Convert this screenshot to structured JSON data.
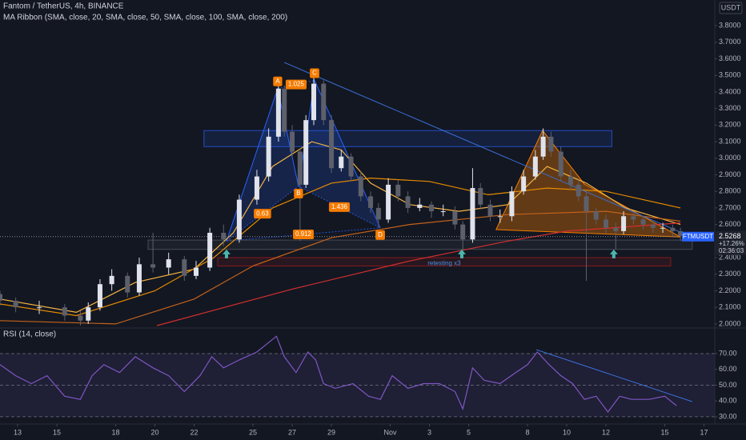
{
  "chart_data": [
    {
      "type": "candlestick",
      "title": "Fantom / TetherUS, 4h, BINANCE",
      "subtitle": "MA Ribbon (SMA, close, 20, SMA, close, 50, SMA, close, 100, SMA, close, 200)",
      "unit_label": "USDT",
      "x": [
        -0.9,
        -0.1,
        1.1,
        2.4,
        3.2,
        3.6,
        4.2,
        4.8,
        5.6,
        6.2,
        6.9,
        7.7,
        8.5,
        9.1,
        9.8,
        10.5,
        11.3,
        12.2,
        12.8,
        13.3,
        13.6,
        14.0,
        14.4,
        14.7,
        15.1,
        15.6,
        16.0,
        16.5,
        17.0,
        17.5,
        18.0,
        18.4,
        18.9,
        19.4,
        19.9,
        20.5,
        21.1,
        21.7,
        22.3,
        22.7,
        23.2,
        23.6,
        24.1,
        24.6,
        25.2,
        25.8,
        26.4,
        26.8,
        27.2,
        27.7,
        28.2,
        28.6,
        29.0,
        29.5,
        30.0,
        30.5,
        30.9,
        31.4,
        31.9,
        32.4,
        32.9,
        33.4,
        33.8
      ],
      "open": [
        2.18,
        2.14,
        2.1,
        2.1,
        2.05,
        2.02,
        2.1,
        2.24,
        2.29,
        2.19,
        2.36,
        2.34,
        2.39,
        2.29,
        2.34,
        2.55,
        2.51,
        2.75,
        2.89,
        3.13,
        3.42,
        3.16,
        3.04,
        2.84,
        3.23,
        3.45,
        3.23,
        2.94,
        3.01,
        2.89,
        2.77,
        2.7,
        2.63,
        2.84,
        2.77,
        2.7,
        2.72,
        2.68,
        2.68,
        2.6,
        2.51,
        2.82,
        2.72,
        2.65,
        2.65,
        2.8,
        2.89,
        3.01,
        3.13,
        3.04,
        2.89,
        2.84,
        2.77,
        2.68,
        2.63,
        2.58,
        2.56,
        2.65,
        2.63,
        2.6,
        2.58,
        2.58,
        2.56
      ],
      "high": [
        2.2,
        2.16,
        2.14,
        2.12,
        2.08,
        2.13,
        2.27,
        2.33,
        2.31,
        2.4,
        2.55,
        2.43,
        2.41,
        2.38,
        2.58,
        2.6,
        2.78,
        2.93,
        3.18,
        3.48,
        3.44,
        3.2,
        3.06,
        3.26,
        3.5,
        3.47,
        3.26,
        3.05,
        3.03,
        2.92,
        2.8,
        2.73,
        2.88,
        2.87,
        2.8,
        2.76,
        2.74,
        2.72,
        2.71,
        2.62,
        2.94,
        2.85,
        2.75,
        2.69,
        2.83,
        2.93,
        3.05,
        3.18,
        3.16,
        3.07,
        2.93,
        2.87,
        2.8,
        2.7,
        2.66,
        2.61,
        2.68,
        2.67,
        2.65,
        2.62,
        2.61,
        2.6,
        2.58
      ],
      "low": [
        2.11,
        2.07,
        2.06,
        2.02,
        1.99,
        2.0,
        2.08,
        2.2,
        2.16,
        2.17,
        2.31,
        2.3,
        2.26,
        2.27,
        2.32,
        2.47,
        2.49,
        2.72,
        2.86,
        3.1,
        3.13,
        3.01,
        2.5,
        2.82,
        3.2,
        3.2,
        2.91,
        2.92,
        2.86,
        2.74,
        2.67,
        2.58,
        2.61,
        2.74,
        2.67,
        2.68,
        2.64,
        2.65,
        2.57,
        2.42,
        2.49,
        2.69,
        2.62,
        2.61,
        2.62,
        2.78,
        2.87,
        2.99,
        3.01,
        2.86,
        2.81,
        2.74,
        2.26,
        2.6,
        2.55,
        2.45,
        2.54,
        2.6,
        2.57,
        2.55,
        2.55,
        2.53,
        2.5
      ],
      "close": [
        2.14,
        2.1,
        2.1,
        2.05,
        2.02,
        2.1,
        2.24,
        2.29,
        2.19,
        2.36,
        2.34,
        2.39,
        2.29,
        2.34,
        2.55,
        2.51,
        2.75,
        2.89,
        3.13,
        3.42,
        3.16,
        3.04,
        2.84,
        3.23,
        3.45,
        3.23,
        2.94,
        3.01,
        2.89,
        2.77,
        2.7,
        2.63,
        2.84,
        2.77,
        2.7,
        2.72,
        2.68,
        2.68,
        2.6,
        2.51,
        2.82,
        2.72,
        2.65,
        2.65,
        2.8,
        2.89,
        3.01,
        3.13,
        3.04,
        2.89,
        2.84,
        2.77,
        2.68,
        2.63,
        2.58,
        2.56,
        2.65,
        2.63,
        2.6,
        2.58,
        2.58,
        2.56,
        2.53
      ],
      "up_color": "#e0e3eb",
      "down_color": "#5d606b",
      "xlim": [
        -0.9,
        35.55
      ],
      "ylim": [
        1.985,
        3.955
      ],
      "yticks": [
        {
          "value": 2.0,
          "label": "2.0000"
        },
        {
          "value": 2.1,
          "label": "2.1000"
        },
        {
          "value": 2.2,
          "label": "2.2000"
        },
        {
          "value": 2.3,
          "label": "2.3000"
        },
        {
          "value": 2.4,
          "label": "2.4000"
        },
        {
          "value": 2.5,
          "label": "2.5000"
        },
        {
          "value": 2.6,
          "label": "2.6000"
        },
        {
          "value": 2.7,
          "label": "2.7000"
        },
        {
          "value": 2.8,
          "label": "2.8000"
        },
        {
          "value": 2.9,
          "label": "2.9000"
        },
        {
          "value": 3.0,
          "label": "3.0000"
        },
        {
          "value": 3.1,
          "label": "3.1000"
        },
        {
          "value": 3.2,
          "label": "3.2000"
        },
        {
          "value": 3.3,
          "label": "3.3000"
        },
        {
          "value": 3.4,
          "label": "3.4000"
        },
        {
          "value": 3.5,
          "label": "3.5000"
        },
        {
          "value": 3.6,
          "label": "3.6000"
        },
        {
          "value": 3.7,
          "label": "3.7000"
        },
        {
          "value": 3.8,
          "label": "3.8000"
        }
      ],
      "ma_lines": [
        {
          "color": "#f5b342",
          "x": [
            -0.9,
            3,
            6,
            9,
            11,
            13,
            15,
            16.5,
            18,
            20,
            22.5,
            25,
            27,
            29,
            31,
            33.8
          ],
          "values": [
            2.15,
            2.07,
            2.25,
            2.33,
            2.55,
            2.95,
            3.1,
            3.05,
            2.85,
            2.72,
            2.68,
            2.72,
            2.95,
            2.85,
            2.7,
            2.6
          ]
        },
        {
          "color": "#e68a00",
          "x": [
            -0.9,
            3,
            7,
            10,
            13,
            16,
            18,
            21,
            24,
            27,
            30,
            33.8
          ],
          "values": [
            2.12,
            2.05,
            2.2,
            2.4,
            2.7,
            2.85,
            2.88,
            2.86,
            2.78,
            2.82,
            2.8,
            2.7
          ]
        },
        {
          "color": "#c4621a",
          "x": [
            -0.9,
            5,
            9,
            12,
            16,
            20,
            25,
            30,
            33.8
          ],
          "values": [
            2.02,
            2.0,
            2.15,
            2.35,
            2.52,
            2.6,
            2.66,
            2.68,
            2.62
          ]
        },
        {
          "color": "#d32f2f",
          "x": [
            7.1,
            14,
            20,
            25,
            28,
            33.8
          ],
          "values": [
            1.99,
            2.21,
            2.38,
            2.5,
            2.56,
            2.61
          ]
        }
      ],
      "trendline": {
        "color": "#3a6fd8",
        "x": [
          13.6,
          33.8
        ],
        "y": [
          3.578,
          2.554
        ]
      },
      "zones": [
        {
          "x": [
            9.5,
            30.3
          ],
          "y": [
            3.07,
            3.167
          ],
          "color": "#2962ff"
        },
        {
          "x": [
            10.2,
            33.3
          ],
          "y": [
            2.35,
            2.4
          ],
          "color": "#b71c1c",
          "label": "retesting x3"
        },
        {
          "x": [
            6.65,
            34.4
          ],
          "y": [
            2.45,
            2.506
          ],
          "color": "#5d606b"
        }
      ],
      "harmonic": {
        "color": "#2962ff",
        "label_color": "#f57c00",
        "x": [
          10.65,
          13.26,
          14.32,
          15.14,
          18.49
        ],
        "y": [
          2.5,
          3.42,
          2.83,
          3.47,
          2.58
        ],
        "labels": [
          null,
          "A",
          "B",
          "C",
          "D"
        ],
        "ratios": [
          0.63,
          1.025,
          0.912,
          1.436
        ]
      },
      "triangle": {
        "color": "#f57c00",
        "x": [
          24.4,
          26.77,
          28.9,
          33.8
        ],
        "y": [
          2.569,
          3.167,
          2.844,
          2.525
        ]
      },
      "markers": {
        "color": "#4db6ac",
        "x": [
          10.65,
          22.65,
          30.4
        ],
        "y": [
          2.42,
          2.42,
          2.42
        ]
      },
      "last_price": 2.5268,
      "change_label": "+17.26%",
      "countdown": "02:36:03",
      "symbol": "FTMUSDT"
    },
    {
      "type": "line",
      "title": "RSI (14, close)",
      "color": "#7e57c2",
      "x": [
        -0.9,
        -0.1,
        0.7,
        1.5,
        2.4,
        3.2,
        3.8,
        4.4,
        5.2,
        6.0,
        6.9,
        7.7,
        8.5,
        9.3,
        9.9,
        10.5,
        11.3,
        12.2,
        13.2,
        13.6,
        14.2,
        14.8,
        15.2,
        15.6,
        16.2,
        17.1,
        17.9,
        18.5,
        19.1,
        19.9,
        20.7,
        21.5,
        22.3,
        22.7,
        23.2,
        23.8,
        24.6,
        25.4,
        26.0,
        26.5,
        27.1,
        27.7,
        28.3,
        28.9,
        29.5,
        30.1,
        30.7,
        31.3,
        32.2,
        33.0,
        33.6
      ],
      "values": [
        63,
        56,
        51,
        56,
        43,
        41,
        56,
        63,
        58,
        68,
        61,
        56,
        46,
        56,
        68,
        61,
        66,
        71,
        81,
        68,
        58,
        71,
        66,
        51,
        48,
        51,
        43,
        41,
        56,
        48,
        51,
        51,
        46,
        35,
        61,
        53,
        51,
        58,
        63,
        71,
        63,
        56,
        51,
        41,
        43,
        33,
        43,
        41,
        41,
        43,
        37
      ],
      "band": [
        30,
        70
      ],
      "hlines": [
        70,
        50,
        30
      ],
      "trendline": {
        "color": "#3a6fd8",
        "x": [
          26.45,
          34.4
        ],
        "y": [
          72.5,
          39.6
        ]
      },
      "xlim": [
        -0.9,
        35.55
      ],
      "ylim": [
        25.4,
        85.2
      ],
      "yticks": [
        {
          "value": 70,
          "label": "70.00"
        },
        {
          "value": 60,
          "label": "60.00"
        },
        {
          "value": 50,
          "label": "50.00"
        },
        {
          "value": 40,
          "label": "40.00"
        },
        {
          "value": 30,
          "label": "30.00"
        }
      ],
      "xticks": [
        {
          "value": 0,
          "label": "13"
        },
        {
          "value": 2,
          "label": "15"
        },
        {
          "value": 5,
          "label": "18"
        },
        {
          "value": 7,
          "label": "20"
        },
        {
          "value": 9,
          "label": "22"
        },
        {
          "value": 12,
          "label": "25"
        },
        {
          "value": 14,
          "label": "27"
        },
        {
          "value": 16,
          "label": "29"
        },
        {
          "value": 19,
          "label": "Nov"
        },
        {
          "value": 21,
          "label": "3"
        },
        {
          "value": 23,
          "label": "5"
        },
        {
          "value": 26,
          "label": "8"
        },
        {
          "value": 28,
          "label": "10"
        },
        {
          "value": 30,
          "label": "12"
        },
        {
          "value": 33,
          "label": "15"
        },
        {
          "value": 35,
          "label": "17"
        }
      ]
    }
  ]
}
